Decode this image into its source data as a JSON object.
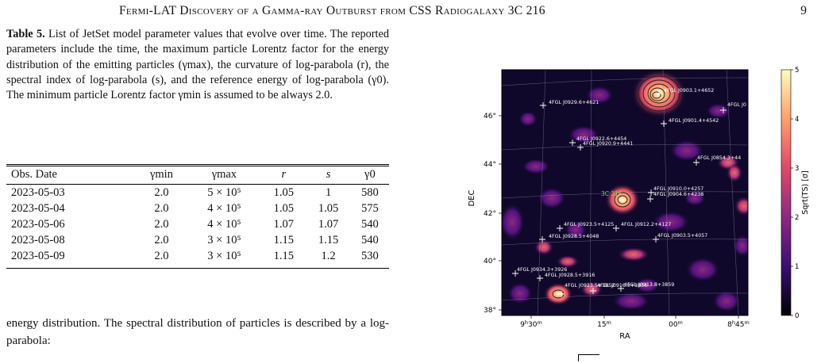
{
  "header": {
    "running_title": "Fermi-LAT Discovery of a Gamma-ray Outburst from CSS Radiogalaxy 3C 216",
    "page_number": "9"
  },
  "caption": {
    "label": "Table 5.",
    "text": "List of JetSet model parameter values that evolve over time. The reported parameters include the time, the maximum particle Lorentz factor for the energy distribution of the emitting particles (γmax), the curvature of log-parabola (r), the spectral index of log-parabola (s), and the reference energy of log-parabola (γ0). The minimum particle Lorentz factor γmin is assumed to be always 2.0."
  },
  "table": {
    "headers": [
      "Obs. Date",
      "γmin",
      "γmax",
      "r",
      "s",
      "γ0"
    ],
    "rows": [
      [
        "2023-05-03",
        "2.0",
        "5 × 10⁵",
        "1.05",
        "1",
        "580"
      ],
      [
        "2023-05-04",
        "2.0",
        "4 × 10⁵",
        "1.05",
        "1.05",
        "575"
      ],
      [
        "2023-05-06",
        "2.0",
        "4 × 10⁵",
        "1.07",
        "1.07",
        "540"
      ],
      [
        "2023-05-08",
        "2.0",
        "3 × 10⁵",
        "1.15",
        "1.15",
        "540"
      ],
      [
        "2023-05-09",
        "2.0",
        "3 × 10⁵",
        "1.15",
        "1.2",
        "530"
      ]
    ]
  },
  "body_text": "energy distribution. The spectral distribution of particles is described by a log-parabola:",
  "figure": {
    "xlabel": "RA",
    "ylabel": "DEC",
    "xticks": [
      "9h30m",
      "15m",
      "00m",
      "8h45m"
    ],
    "yticks": [
      "38°",
      "40°",
      "42°",
      "44°",
      "46°"
    ],
    "colorbar_label": "Sqrt(TS) [σ]",
    "colorbar_ticks": [
      "0",
      "1",
      "2",
      "3",
      "4",
      "5"
    ],
    "target_label": "3C 216",
    "sources": [
      "4FGL J0903.1+4652",
      "4FGL J0929.6+4621",
      "4FGL J0",
      "4FGL J0901.4+4542",
      "4FGL J0922.6+4454",
      "4FGL J0920.9+4441",
      "4FGL J0854.3+44",
      "4FGL J0910.0+4257",
      "4FGL J0904.6+4238",
      "4FGL J0923.5+4125",
      "4FGL J0912.2+4127",
      "4FGL J0928.5+4048",
      "4FGL J0903.5+4057",
      "4FGL J0934.3+3926",
      "4FGL J0928.5+3916",
      "4FGL J0923.5+3852",
      "4FGL J0916.9+3856",
      "4FGL J0913.8+3859"
    ],
    "colormap": {
      "low": "#000004",
      "mid": "#b73779",
      "high": "#fcfdbf"
    }
  }
}
